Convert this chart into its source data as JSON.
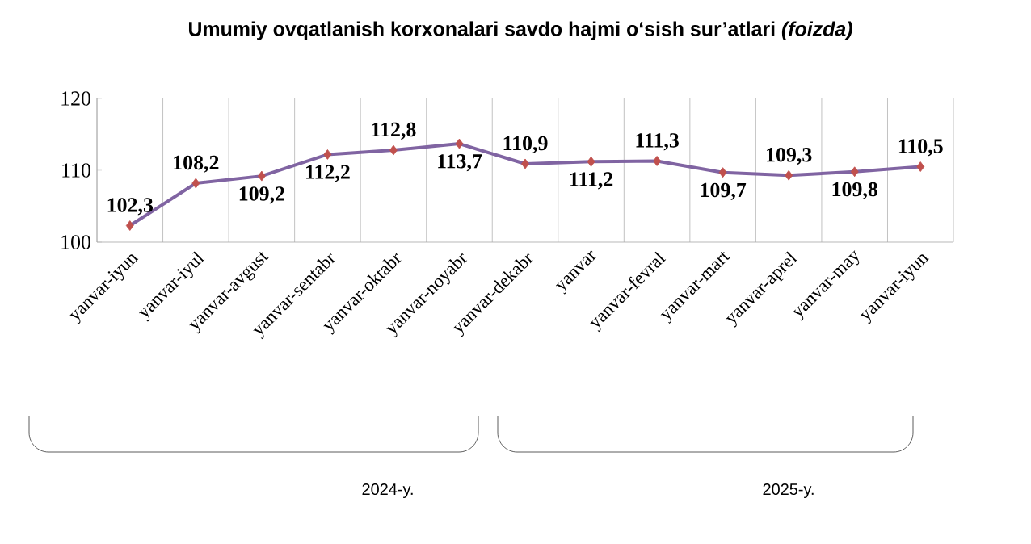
{
  "chart_data": {
    "type": "line",
    "title": "Umumiy ovqatlanish korxonalari savdo hajmi o‘sish sur’atlari *(foizda)*",
    "categories": [
      "yanvar-iyun",
      "yanvar-iyul",
      "yanvar-avgust",
      "yanvar-sentabr",
      "yanvar-oktabr",
      "yanvar-noyabr",
      "yanvar-dekabr",
      "yanvar",
      "yanvar-fevral",
      "yanvar-mart",
      "yanvar-aprel",
      "yanvar-may",
      "yanvar-iyun"
    ],
    "series": [
      {
        "color": "#8064a2",
        "colors": [
          "#c0504d",
          "#c0504d",
          "#c0504d",
          "#c0504d",
          "#c0504d",
          "#c0504d",
          "#c0504d",
          "#c0504d",
          "#c0504d",
          "#c0504d",
          "#c0504d",
          "#c0504d",
          "#c0504d"
        ],
        "values": [
          102.3,
          108.2,
          109.2,
          112.2,
          112.8,
          113.7,
          110.9,
          111.2,
          111.3,
          109.7,
          109.3,
          109.8,
          110.5
        ],
        "value_labels": [
          "102,3",
          "108,2",
          "109,2",
          "112,2",
          "112,8",
          "113,7",
          "110,9",
          "111,2",
          "111,3",
          "109,7",
          "109,3",
          "109,8",
          "110,5"
        ]
      }
    ],
    "ylim": [
      100,
      120
    ],
    "yticks": [
      100,
      110,
      120
    ],
    "grid": "x",
    "marker": "diamond",
    "line_style": "solid",
    "annotations": [
      "2024-y.",
      "2025-y."
    ]
  }
}
